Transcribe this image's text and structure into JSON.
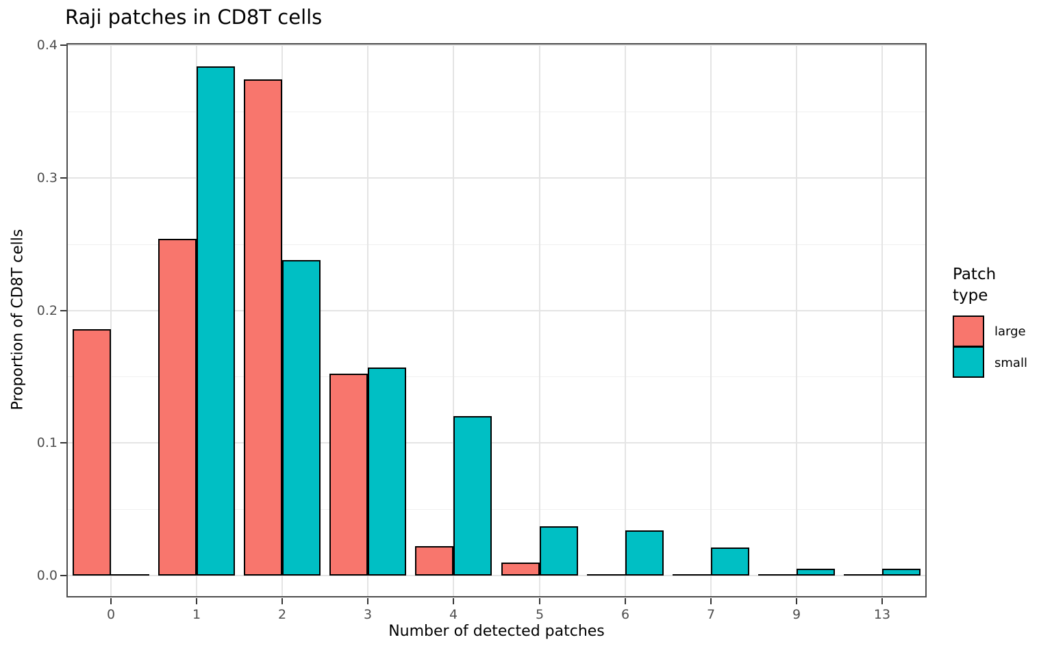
{
  "chart_data": {
    "type": "bar",
    "title": "Raji patches in CD8T cells",
    "xlabel": "Number of detected patches",
    "ylabel": "Proportion of CD8T cells",
    "categories": [
      "0",
      "1",
      "2",
      "3",
      "4",
      "5",
      "6",
      "7",
      "9",
      "13"
    ],
    "series": [
      {
        "name": "large",
        "color": "#F8766D",
        "values": [
          0.186,
          0.254,
          0.374,
          0.152,
          0.022,
          0.01,
          0,
          0,
          0,
          0
        ]
      },
      {
        "name": "small",
        "color": "#00BFC4",
        "values": [
          0,
          0.384,
          0.238,
          0.157,
          0.12,
          0.037,
          0.034,
          0.021,
          0.005,
          0.005
        ]
      }
    ],
    "ylim": [
      0,
      0.4
    ],
    "yticks": [
      0.0,
      0.1,
      0.2,
      0.3,
      0.4
    ],
    "ytick_labels": [
      "0.0",
      "0.1",
      "0.2",
      "0.3",
      "0.4"
    ],
    "grid": true,
    "bar_stroke": "#000000",
    "legend": {
      "title": "Patch type",
      "title_lines": [
        "Patch",
        "type"
      ],
      "position": "right",
      "entries": [
        {
          "label": "large"
        },
        {
          "label": "small"
        }
      ]
    }
  }
}
